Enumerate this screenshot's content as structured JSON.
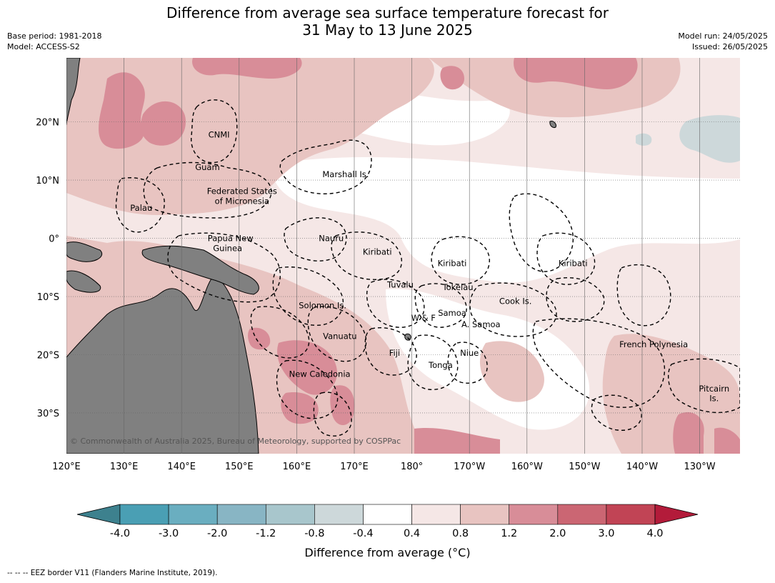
{
  "title": {
    "line1": "Difference from average sea surface temperature forecast for",
    "line2": "31 May to 13 June 2025"
  },
  "meta_left": {
    "base_period": "Base period: 1981-2018",
    "model": "Model: ACCESS-S2"
  },
  "meta_right": {
    "model_run": "Model run: 24/05/2025",
    "issued": "Issued: 26/05/2025"
  },
  "map": {
    "lon_ticks": [
      "120°E",
      "130°E",
      "140°E",
      "150°E",
      "160°E",
      "170°E",
      "180°",
      "170°W",
      "160°W",
      "150°W",
      "140°W",
      "130°W"
    ],
    "lat_ticks": [
      "20°N",
      "10°N",
      "0°",
      "10°S",
      "20°S",
      "30°S"
    ],
    "lon_values": [
      120,
      130,
      140,
      150,
      160,
      170,
      180,
      190,
      200,
      210,
      220,
      230
    ],
    "lat_values": [
      20,
      10,
      0,
      -10,
      -20,
      -30
    ],
    "lon_range": [
      120,
      237
    ],
    "lat_range": [
      -37,
      31
    ],
    "land_color": "#808080",
    "eez_style": "dashed",
    "regions": [
      {
        "name": "CNMI",
        "lon": 146.5,
        "lat": 17.8
      },
      {
        "name": "Guam",
        "lon": 144.5,
        "lat": 12.2
      },
      {
        "name": "Marshall Is.",
        "lon": 168.5,
        "lat": 11.0
      },
      {
        "name": "Federated States",
        "lon": 150.5,
        "lat": 8.1
      },
      {
        "name": "of Micronesia",
        "lon": 150.5,
        "lat": 6.4
      },
      {
        "name": "Palau",
        "lon": 133.0,
        "lat": 5.2
      },
      {
        "name": "Papua New",
        "lon": 148.5,
        "lat": 0.0
      },
      {
        "name": "Guinea",
        "lon": 148.0,
        "lat": -1.7
      },
      {
        "name": "Nauru",
        "lon": 166.0,
        "lat": 0.0
      },
      {
        "name": "Kiribati",
        "lon": 174.0,
        "lat": -2.3
      },
      {
        "name": "Kiribati",
        "lon": 187.0,
        "lat": -4.3
      },
      {
        "name": "Kiribati",
        "lon": 208.0,
        "lat": -4.3
      },
      {
        "name": "Tuvalu",
        "lon": 178.0,
        "lat": -8.0
      },
      {
        "name": "Tokelau",
        "lon": 188.0,
        "lat": -8.4
      },
      {
        "name": "Solomon Is.",
        "lon": 164.5,
        "lat": -11.5
      },
      {
        "name": "Cook Is.",
        "lon": 198.0,
        "lat": -10.8
      },
      {
        "name": "Samoa",
        "lon": 187.0,
        "lat": -12.8
      },
      {
        "name": "W & F",
        "lon": 182.0,
        "lat": -13.7
      },
      {
        "name": "A. Samoa",
        "lon": 192.0,
        "lat": -14.8
      },
      {
        "name": "Vanuatu",
        "lon": 167.5,
        "lat": -16.8
      },
      {
        "name": "French Polynesia",
        "lon": 222.0,
        "lat": -18.2
      },
      {
        "name": "Fiji",
        "lon": 177.0,
        "lat": -19.7
      },
      {
        "name": "Niue",
        "lon": 190.0,
        "lat": -19.7
      },
      {
        "name": "Tonga",
        "lon": 185.0,
        "lat": -21.8
      },
      {
        "name": "New Caledonia",
        "lon": 164.0,
        "lat": -23.3
      },
      {
        "name": "Pitcairn",
        "lon": 232.5,
        "lat": -25.8
      },
      {
        "name": "Is.",
        "lon": 232.5,
        "lat": -27.5
      }
    ],
    "attribution": "© Commonwealth of Australia 2025, Bureau of Meteorology, supported by COSPPac"
  },
  "colorbar": {
    "colors": [
      "#3d818e",
      "#4a9fb4",
      "#6aaec0",
      "#88b5c4",
      "#a8c6cc",
      "#cdd8da",
      "#ffffff",
      "#f5e7e6",
      "#e8c4c1",
      "#d88d98",
      "#cb6673",
      "#c14455",
      "#b31b3a"
    ],
    "tick_labels": [
      "-4.0",
      "-3.0",
      "-2.0",
      "-1.2",
      "-0.8",
      "-0.4",
      "0.4",
      "0.8",
      "1.2",
      "2.0",
      "3.0",
      "4.0"
    ],
    "label": "Difference from average (°C)"
  },
  "footer": "--  --  -- EEZ border V11 (Flanders Marine Institute, 2019)."
}
